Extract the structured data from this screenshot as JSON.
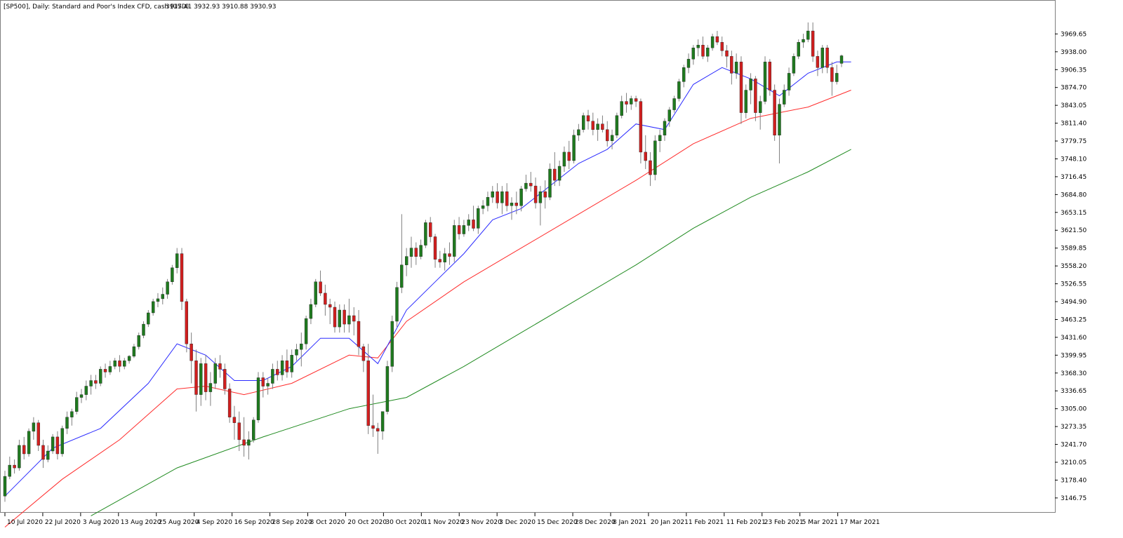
{
  "header": {
    "title": "[SP500], Daily:  Standard and Poor's Index CFD, cash (USD)",
    "ohlc": "3917.41 3932.93 3910.88 3930.93"
  },
  "chart_data": {
    "type": "candlestick",
    "title": "[SP500], Daily:  Standard and Poor's Index CFD, cash (USD)",
    "last_bar_ohlc": {
      "open": 3917.41,
      "high": 3932.93,
      "low": 3910.88,
      "close": 3930.93
    },
    "grid": false,
    "y_axis": {
      "position": "right",
      "range": [
        3118,
        3995
      ],
      "ticks": [
        "3969.65",
        "3938.00",
        "3906.35",
        "3874.70",
        "3843.05",
        "3811.40",
        "3779.75",
        "3748.10",
        "3716.45",
        "3684.80",
        "3653.15",
        "3621.50",
        "3589.85",
        "3558.20",
        "3526.55",
        "3494.90",
        "3463.25",
        "3431.60",
        "3399.95",
        "3368.30",
        "3336.65",
        "3305.00",
        "3273.35",
        "3241.70",
        "3210.05",
        "3178.40",
        "3146.75"
      ]
    },
    "x_axis": {
      "ticks": [
        "10 Jul 2020",
        "22 Jul 2020",
        "3 Aug 2020",
        "13 Aug 2020",
        "25 Aug 2020",
        "4 Sep 2020",
        "16 Sep 2020",
        "28 Sep 2020",
        "8 Oct 2020",
        "20 Oct 2020",
        "30 Oct 2020",
        "11 Nov 2020",
        "23 Nov 2020",
        "3 Dec 2020",
        "15 Dec 2020",
        "28 Dec 2020",
        "8 Jan 2021",
        "20 Jan 2021",
        "1 Feb 2021",
        "11 Feb 2021",
        "23 Feb 2021",
        "5 Mar 2021",
        "17 Mar 2021"
      ]
    },
    "colors": {
      "bull": "#1f7a1f",
      "bear": "#d11f1f",
      "wick": "#7f7f7f",
      "ma_fast": "#2b2bff",
      "ma_mid": "#ff2b2b",
      "ma_slow": "#1f8a1f"
    },
    "ohlc_approx": [
      [
        3150,
        3195,
        3140,
        3185
      ],
      [
        3185,
        3220,
        3180,
        3205
      ],
      [
        3205,
        3215,
        3190,
        3200
      ],
      [
        3200,
        3250,
        3195,
        3240
      ],
      [
        3240,
        3255,
        3215,
        3225
      ],
      [
        3225,
        3270,
        3220,
        3265
      ],
      [
        3265,
        3290,
        3250,
        3280
      ],
      [
        3280,
        3285,
        3230,
        3240
      ],
      [
        3240,
        3250,
        3200,
        3215
      ],
      [
        3215,
        3240,
        3210,
        3230
      ],
      [
        3230,
        3260,
        3225,
        3255
      ],
      [
        3255,
        3265,
        3215,
        3225
      ],
      [
        3225,
        3275,
        3220,
        3270
      ],
      [
        3270,
        3300,
        3260,
        3290
      ],
      [
        3290,
        3305,
        3275,
        3300
      ],
      [
        3300,
        3335,
        3295,
        3325
      ],
      [
        3325,
        3340,
        3315,
        3330
      ],
      [
        3330,
        3355,
        3320,
        3345
      ],
      [
        3345,
        3365,
        3330,
        3355
      ],
      [
        3355,
        3365,
        3340,
        3350
      ],
      [
        3350,
        3380,
        3345,
        3375
      ],
      [
        3375,
        3385,
        3360,
        3370
      ],
      [
        3370,
        3390,
        3365,
        3380
      ],
      [
        3380,
        3395,
        3375,
        3390
      ],
      [
        3390,
        3400,
        3370,
        3380
      ],
      [
        3380,
        3395,
        3375,
        3390
      ],
      [
        3390,
        3400,
        3385,
        3398
      ],
      [
        3398,
        3420,
        3395,
        3415
      ],
      [
        3415,
        3440,
        3410,
        3435
      ],
      [
        3435,
        3460,
        3430,
        3455
      ],
      [
        3455,
        3480,
        3450,
        3475
      ],
      [
        3475,
        3500,
        3470,
        3495
      ],
      [
        3495,
        3510,
        3485,
        3500
      ],
      [
        3500,
        3520,
        3490,
        3508
      ],
      [
        3508,
        3535,
        3500,
        3530
      ],
      [
        3530,
        3560,
        3525,
        3555
      ],
      [
        3555,
        3590,
        3545,
        3580
      ],
      [
        3580,
        3590,
        3480,
        3495
      ],
      [
        3495,
        3500,
        3405,
        3420
      ],
      [
        3420,
        3440,
        3350,
        3390
      ],
      [
        3390,
        3410,
        3300,
        3330
      ],
      [
        3330,
        3395,
        3310,
        3385
      ],
      [
        3385,
        3400,
        3320,
        3335
      ],
      [
        3335,
        3370,
        3310,
        3350
      ],
      [
        3350,
        3395,
        3340,
        3385
      ],
      [
        3385,
        3400,
        3360,
        3375
      ],
      [
        3375,
        3385,
        3330,
        3340
      ],
      [
        3340,
        3350,
        3280,
        3290
      ],
      [
        3290,
        3310,
        3250,
        3280
      ],
      [
        3280,
        3300,
        3230,
        3250
      ],
      [
        3250,
        3290,
        3220,
        3240
      ],
      [
        3240,
        3265,
        3215,
        3250
      ],
      [
        3250,
        3290,
        3245,
        3285
      ],
      [
        3285,
        3370,
        3280,
        3360
      ],
      [
        3360,
        3370,
        3325,
        3345
      ],
      [
        3345,
        3360,
        3330,
        3350
      ],
      [
        3350,
        3385,
        3340,
        3375
      ],
      [
        3375,
        3390,
        3355,
        3365
      ],
      [
        3365,
        3400,
        3355,
        3390
      ],
      [
        3390,
        3410,
        3360,
        3370
      ],
      [
        3370,
        3410,
        3360,
        3400
      ],
      [
        3400,
        3420,
        3390,
        3410
      ],
      [
        3410,
        3440,
        3380,
        3420
      ],
      [
        3420,
        3470,
        3410,
        3465
      ],
      [
        3465,
        3500,
        3455,
        3490
      ],
      [
        3490,
        3535,
        3485,
        3530
      ],
      [
        3530,
        3550,
        3505,
        3510
      ],
      [
        3510,
        3525,
        3470,
        3490
      ],
      [
        3490,
        3500,
        3455,
        3485
      ],
      [
        3485,
        3495,
        3440,
        3450
      ],
      [
        3450,
        3490,
        3440,
        3480
      ],
      [
        3480,
        3490,
        3440,
        3455
      ],
      [
        3455,
        3500,
        3440,
        3470
      ],
      [
        3470,
        3485,
        3435,
        3460
      ],
      [
        3460,
        3480,
        3400,
        3415
      ],
      [
        3415,
        3420,
        3370,
        3390
      ],
      [
        3390,
        3420,
        3260,
        3275
      ],
      [
        3275,
        3330,
        3255,
        3270
      ],
      [
        3270,
        3280,
        3225,
        3265
      ],
      [
        3265,
        3300,
        3250,
        3300
      ],
      [
        3300,
        3390,
        3295,
        3380
      ],
      [
        3380,
        3470,
        3370,
        3460
      ],
      [
        3460,
        3530,
        3450,
        3520
      ],
      [
        3520,
        3650,
        3510,
        3560
      ],
      [
        3560,
        3590,
        3540,
        3575
      ],
      [
        3575,
        3610,
        3555,
        3590
      ],
      [
        3590,
        3600,
        3560,
        3575
      ],
      [
        3575,
        3605,
        3570,
        3595
      ],
      [
        3595,
        3640,
        3590,
        3635
      ],
      [
        3635,
        3645,
        3600,
        3610
      ],
      [
        3610,
        3615,
        3555,
        3570
      ],
      [
        3570,
        3585,
        3555,
        3565
      ],
      [
        3565,
        3590,
        3550,
        3580
      ],
      [
        3580,
        3600,
        3560,
        3575
      ],
      [
        3575,
        3640,
        3565,
        3630
      ],
      [
        3630,
        3645,
        3605,
        3615
      ],
      [
        3615,
        3640,
        3610,
        3630
      ],
      [
        3630,
        3650,
        3620,
        3640
      ],
      [
        3640,
        3665,
        3620,
        3625
      ],
      [
        3625,
        3665,
        3615,
        3660
      ],
      [
        3660,
        3675,
        3650,
        3665
      ],
      [
        3665,
        3690,
        3655,
        3680
      ],
      [
        3680,
        3700,
        3670,
        3690
      ],
      [
        3690,
        3705,
        3660,
        3670
      ],
      [
        3670,
        3700,
        3650,
        3690
      ],
      [
        3690,
        3705,
        3655,
        3665
      ],
      [
        3665,
        3680,
        3640,
        3670
      ],
      [
        3670,
        3690,
        3650,
        3665
      ],
      [
        3665,
        3700,
        3655,
        3695
      ],
      [
        3695,
        3720,
        3690,
        3705
      ],
      [
        3705,
        3725,
        3690,
        3700
      ],
      [
        3700,
        3715,
        3660,
        3670
      ],
      [
        3670,
        3700,
        3630,
        3690
      ],
      [
        3690,
        3710,
        3660,
        3680
      ],
      [
        3680,
        3740,
        3675,
        3730
      ],
      [
        3730,
        3760,
        3700,
        3710
      ],
      [
        3710,
        3745,
        3700,
        3735
      ],
      [
        3735,
        3770,
        3725,
        3760
      ],
      [
        3760,
        3780,
        3730,
        3745
      ],
      [
        3745,
        3800,
        3740,
        3790
      ],
      [
        3790,
        3810,
        3780,
        3800
      ],
      [
        3800,
        3830,
        3795,
        3825
      ],
      [
        3825,
        3835,
        3800,
        3815
      ],
      [
        3815,
        3830,
        3790,
        3800
      ],
      [
        3800,
        3820,
        3780,
        3810
      ],
      [
        3810,
        3825,
        3795,
        3800
      ],
      [
        3800,
        3815,
        3770,
        3780
      ],
      [
        3780,
        3800,
        3765,
        3790
      ],
      [
        3790,
        3830,
        3785,
        3825
      ],
      [
        3825,
        3860,
        3820,
        3850
      ],
      [
        3850,
        3865,
        3830,
        3845
      ],
      [
        3845,
        3860,
        3835,
        3855
      ],
      [
        3855,
        3860,
        3840,
        3850
      ],
      [
        3850,
        3855,
        3740,
        3760
      ],
      [
        3760,
        3790,
        3730,
        3745
      ],
      [
        3745,
        3760,
        3700,
        3720
      ],
      [
        3720,
        3790,
        3710,
        3780
      ],
      [
        3780,
        3800,
        3760,
        3790
      ],
      [
        3790,
        3820,
        3780,
        3815
      ],
      [
        3815,
        3840,
        3805,
        3835
      ],
      [
        3835,
        3860,
        3830,
        3855
      ],
      [
        3855,
        3890,
        3850,
        3885
      ],
      [
        3885,
        3915,
        3875,
        3910
      ],
      [
        3910,
        3935,
        3900,
        3925
      ],
      [
        3925,
        3950,
        3915,
        3945
      ],
      [
        3945,
        3960,
        3930,
        3950
      ],
      [
        3950,
        3965,
        3925,
        3930
      ],
      [
        3930,
        3950,
        3920,
        3945
      ],
      [
        3945,
        3970,
        3940,
        3965
      ],
      [
        3965,
        3975,
        3950,
        3955
      ],
      [
        3955,
        3965,
        3930,
        3940
      ],
      [
        3940,
        3950,
        3910,
        3930
      ],
      [
        3930,
        3940,
        3880,
        3900
      ],
      [
        3900,
        3935,
        3890,
        3920
      ],
      [
        3920,
        3930,
        3810,
        3830
      ],
      [
        3830,
        3880,
        3820,
        3870
      ],
      [
        3870,
        3900,
        3845,
        3890
      ],
      [
        3890,
        3895,
        3815,
        3830
      ],
      [
        3830,
        3860,
        3800,
        3850
      ],
      [
        3850,
        3930,
        3845,
        3920
      ],
      [
        3920,
        3925,
        3860,
        3870
      ],
      [
        3870,
        3880,
        3780,
        3790
      ],
      [
        3790,
        3855,
        3740,
        3845
      ],
      [
        3845,
        3880,
        3840,
        3870
      ],
      [
        3870,
        3910,
        3860,
        3900
      ],
      [
        3900,
        3935,
        3895,
        3930
      ],
      [
        3930,
        3960,
        3925,
        3955
      ],
      [
        3955,
        3970,
        3945,
        3960
      ],
      [
        3960,
        3990,
        3955,
        3975
      ],
      [
        3975,
        3990,
        3920,
        3930
      ],
      [
        3930,
        3940,
        3895,
        3910
      ],
      [
        3910,
        3950,
        3900,
        3945
      ],
      [
        3945,
        3950,
        3900,
        3910
      ],
      [
        3910,
        3920,
        3860,
        3885
      ],
      [
        3885,
        3915,
        3880,
        3900
      ],
      [
        3917.41,
        3932.93,
        3910.88,
        3930.93
      ]
    ],
    "ma_fast_approx": [
      [
        0,
        3150
      ],
      [
        10,
        3235
      ],
      [
        20,
        3270
      ],
      [
        30,
        3350
      ],
      [
        36,
        3420
      ],
      [
        42,
        3400
      ],
      [
        48,
        3355
      ],
      [
        54,
        3355
      ],
      [
        60,
        3380
      ],
      [
        66,
        3430
      ],
      [
        72,
        3430
      ],
      [
        78,
        3385
      ],
      [
        84,
        3480
      ],
      [
        90,
        3530
      ],
      [
        96,
        3580
      ],
      [
        102,
        3640
      ],
      [
        108,
        3660
      ],
      [
        114,
        3700
      ],
      [
        120,
        3740
      ],
      [
        126,
        3765
      ],
      [
        132,
        3810
      ],
      [
        138,
        3800
      ],
      [
        144,
        3880
      ],
      [
        150,
        3910
      ],
      [
        156,
        3890
      ],
      [
        162,
        3860
      ],
      [
        168,
        3900
      ],
      [
        174,
        3920
      ],
      [
        177,
        3920
      ]
    ],
    "ma_mid_approx": [
      [
        0,
        3095
      ],
      [
        12,
        3180
      ],
      [
        24,
        3250
      ],
      [
        36,
        3340
      ],
      [
        42,
        3345
      ],
      [
        50,
        3330
      ],
      [
        60,
        3350
      ],
      [
        72,
        3400
      ],
      [
        78,
        3395
      ],
      [
        84,
        3460
      ],
      [
        96,
        3530
      ],
      [
        108,
        3590
      ],
      [
        120,
        3650
      ],
      [
        132,
        3710
      ],
      [
        144,
        3775
      ],
      [
        156,
        3820
      ],
      [
        168,
        3840
      ],
      [
        177,
        3870
      ]
    ],
    "ma_slow_approx": [
      [
        18,
        3115
      ],
      [
        36,
        3200
      ],
      [
        54,
        3255
      ],
      [
        72,
        3305
      ],
      [
        84,
        3325
      ],
      [
        96,
        3380
      ],
      [
        108,
        3440
      ],
      [
        120,
        3500
      ],
      [
        132,
        3560
      ],
      [
        144,
        3625
      ],
      [
        156,
        3680
      ],
      [
        168,
        3725
      ],
      [
        177,
        3765
      ]
    ]
  }
}
